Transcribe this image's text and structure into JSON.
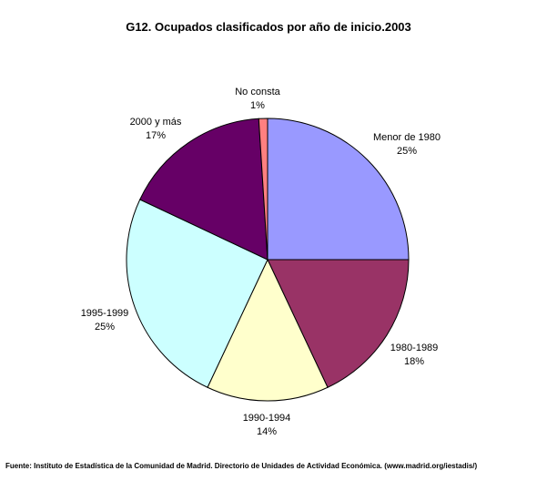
{
  "chart_data": {
    "type": "pie",
    "title": "G12. Ocupados clasificados por año de inicio.2003",
    "start_angle_deg": -90,
    "direction": "clockwise",
    "slices": [
      {
        "label": "Menor de 1980",
        "value": 25,
        "value_label": "25%",
        "color": "#9999ff"
      },
      {
        "label": "1980-1989",
        "value": 18,
        "value_label": "18%",
        "color": "#993366"
      },
      {
        "label": "1990-1994",
        "value": 14,
        "value_label": "14%",
        "color": "#ffffcc"
      },
      {
        "label": "1995-1999",
        "value": 25,
        "value_label": "25%",
        "color": "#ccffff"
      },
      {
        "label": "2000 y más",
        "value": 17,
        "value_label": "17%",
        "color": "#660066"
      },
      {
        "label": "No consta",
        "value": 1,
        "value_label": "1%",
        "color": "#ff8080"
      }
    ],
    "legend": "none",
    "source": "Fuente: Instituto de Estadística de la Comunidad de Madrid. Directorio de Unidades de Actividad Económica. (www.madrid.org/iestadis/)"
  }
}
